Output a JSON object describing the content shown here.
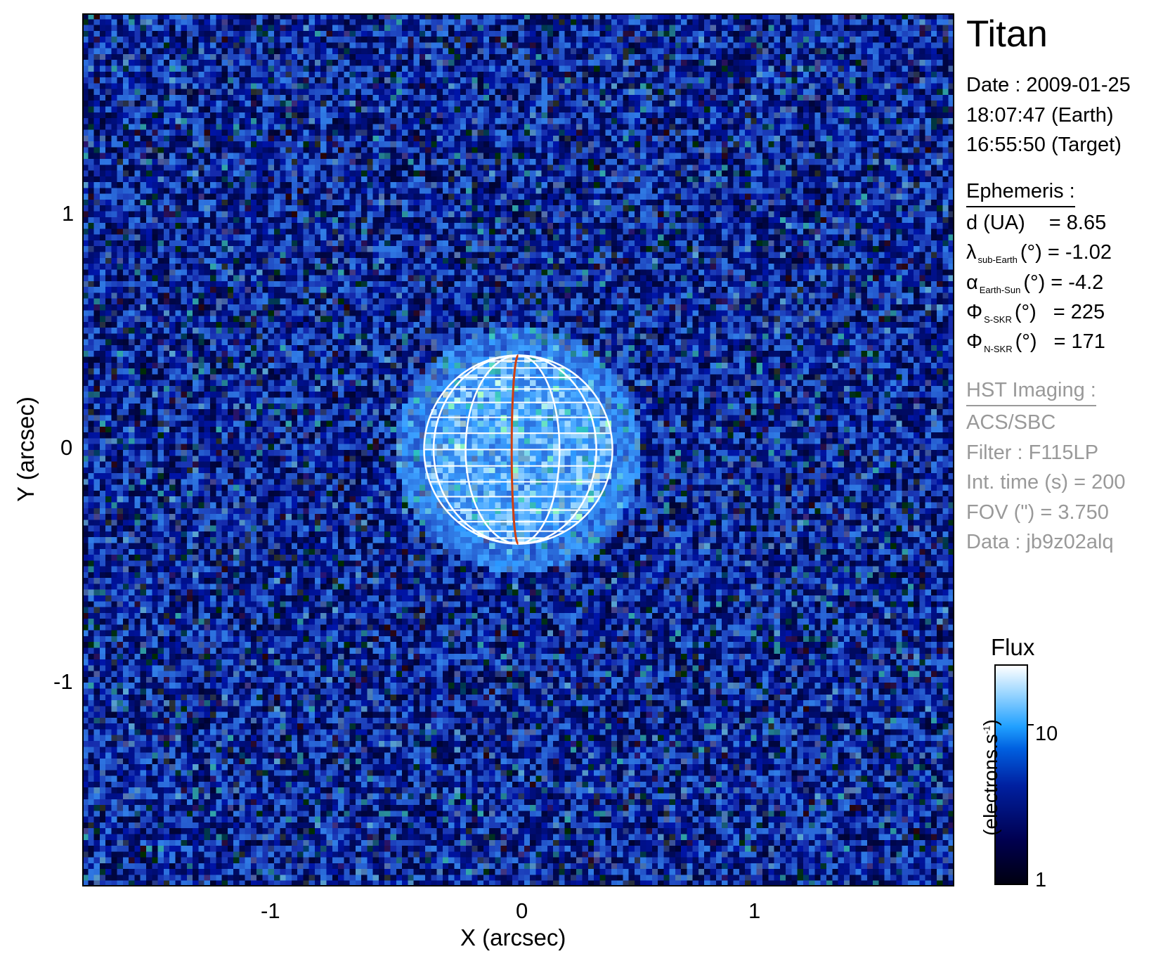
{
  "chart_data": {
    "type": "heatmap",
    "title": "Titan",
    "xlabel": "X (arcsec)",
    "ylabel": "Y (arcsec)",
    "xlim": [
      -1.875,
      1.875
    ],
    "ylim": [
      -1.875,
      1.875
    ],
    "xticks": [
      "-1",
      "0",
      "1"
    ],
    "yticks": [
      "1",
      "0",
      "-1"
    ],
    "xtick_values": [
      -1,
      0,
      1
    ],
    "ytick_values": [
      1,
      0,
      -1
    ],
    "grid": false,
    "target_disk": {
      "center": [
        0,
        0
      ],
      "radius_arcsec": 0.405,
      "meridian_color": "#d04010",
      "grid_color": "#ffffff"
    },
    "colorbar": {
      "title": "Flux",
      "label": "(electrons.s",
      "label_sup": "-1",
      "label_close": ")",
      "scale": "log",
      "range": [
        1,
        29
      ],
      "ticks": [
        "1",
        "10"
      ],
      "tick_values": [
        1,
        10
      ],
      "colormap": [
        "#000010",
        "#000050",
        "#0020a0",
        "#0060e0",
        "#20a0ff",
        "#a0d8ff",
        "#ffffff"
      ]
    }
  },
  "info": {
    "target": "Titan",
    "date_line": "Date : 2009-01-25",
    "earth_time": "18:07:47 (Earth)",
    "target_time": "16:55:50 (Target)",
    "ephemeris_header": "Ephemeris :",
    "ephemeris": [
      {
        "symbol": "d (UA)",
        "sub": "",
        "unit": "",
        "eq": "= 8.65"
      },
      {
        "symbol": "λ",
        "sub": "sub-Earth",
        "unit": "(°)",
        "eq": "= -1.02"
      },
      {
        "symbol": "α",
        "sub": "Earth-Sun",
        "unit": "(°)",
        "eq": "= -4.2"
      },
      {
        "symbol": "Φ",
        "sub": "S-SKR",
        "unit": "(°)",
        "eq": "= 225"
      },
      {
        "symbol": "Φ",
        "sub": "N-SKR",
        "unit": "(°)",
        "eq": "= 171"
      }
    ],
    "imaging_header": "HST Imaging :",
    "imaging": [
      "ACS/SBC",
      "Filter : F115LP",
      "Int. time (s) = 200",
      "FOV (\") = 3.750",
      "Data : jb9z02alq"
    ]
  }
}
